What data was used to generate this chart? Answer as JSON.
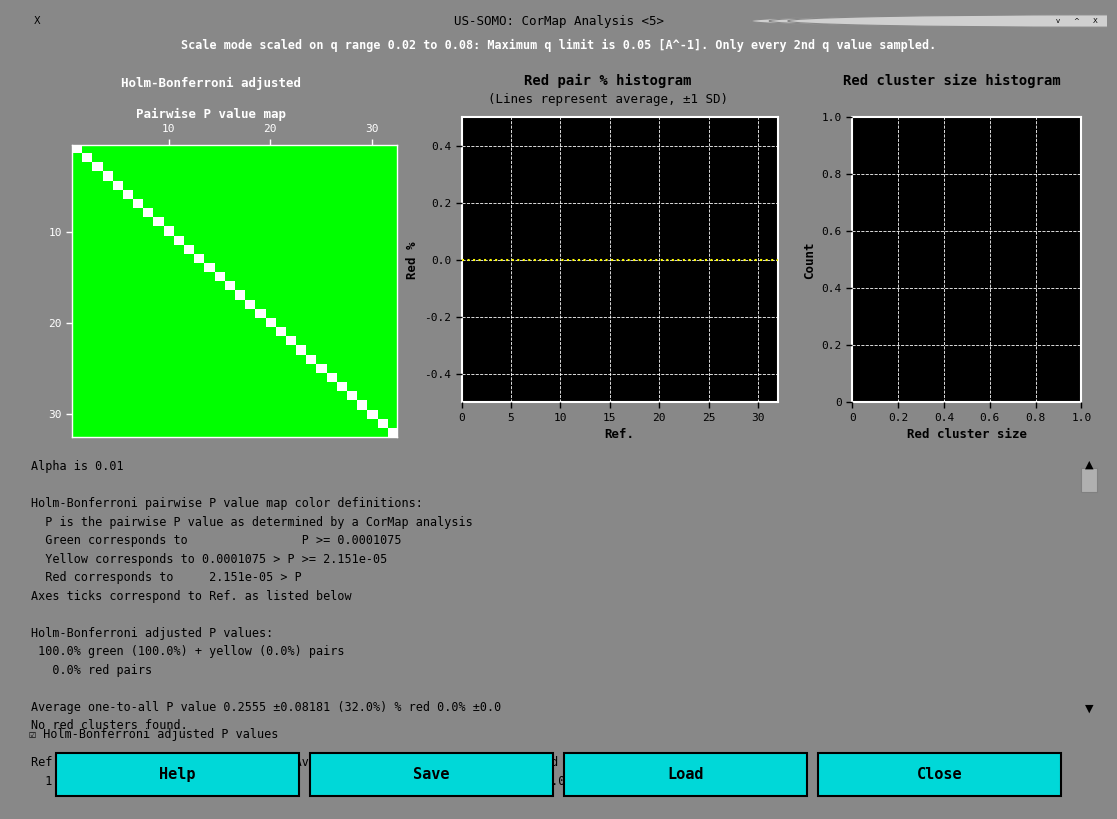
{
  "title_bar": "US-SOMO: CorMap Analysis <5>",
  "subtitle": "Scale mode scaled on q range 0.02 to 0.08: Maximum q limit is 0.05 [A^-1]. Only every 2nd q value sampled.",
  "map_title1": "Holm-Bonferroni adjusted",
  "map_title2": "Pairwise P value map",
  "hist_title1": "Red pair % histogram",
  "hist_title2": "(Lines represent average, ±1 SD)",
  "cluster_title": "Red cluster size histogram",
  "hist_xlabel": "Ref.",
  "hist_ylabel": "Red %",
  "cluster_xlabel": "Red cluster size",
  "cluster_ylabel": "Count",
  "n_items": 32,
  "map_ticks": [
    10,
    20,
    30
  ],
  "hist_xticks": [
    0,
    5,
    10,
    15,
    20,
    25,
    30
  ],
  "hist_yticks": [
    -0.4,
    -0.2,
    0.0,
    0.2,
    0.4
  ],
  "cluster_xticks": [
    0,
    0.2,
    0.4,
    0.6,
    0.8,
    1.0
  ],
  "cluster_yticks": [
    0,
    0.2,
    0.4,
    0.6,
    0.8,
    1.0
  ],
  "teal_color": "#1a7070",
  "gray_panel": "#b0b0b0",
  "black": "#000000",
  "white": "#ffffff",
  "green": "#00ff00",
  "yellow": "#ffff00",
  "cyan_button": "#00d8d8",
  "text_content": "Alpha is 0.01\n\nHolm-Bonferroni pairwise P value map color definitions:\n  P is the pairwise P value as determined by a CorMap analysis\n  Green corresponds to                P >= 0.0001075\n  Yellow corresponds to 0.0001075 > P >= 2.151e-05\n  Red corresponds to     2.151e-05 > P\nAxes ticks correspond to Ref. as listed below\n\nHolm-Bonferroni adjusted P values:\n 100.0% green (100.0%) + yellow (0.0%) pairs\n   0.0% red pairs\n\nAverage one-to-all P value 0.2555 ±0.08181 (32.0%) % red 0.0% ±0.0\nNo red clusters found.\n\nRef. : Name                          Avg. P value    Min. P Value    % Red\n  1 : Sub_lyso_0015_rad_It_bs1100       0.1615          0.003416        0.0%",
  "checkbox_label": "☑ Holm-Bonferroni adjusted P values",
  "button_labels": [
    "Help",
    "Save",
    "Load",
    "Close"
  ]
}
